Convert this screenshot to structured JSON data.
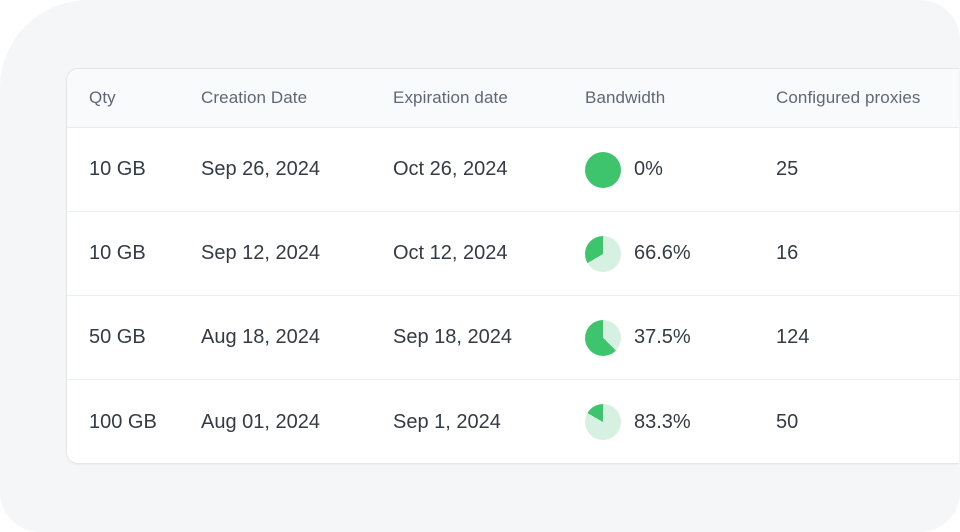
{
  "canvas": {
    "background_color": "#F5F6F8",
    "page_color": "#ffffff"
  },
  "table": {
    "columns": [
      {
        "key": "qty",
        "label": "Qty"
      },
      {
        "key": "creation",
        "label": "Creation Date"
      },
      {
        "key": "expiration",
        "label": "Expiration date"
      },
      {
        "key": "bandwidth",
        "label": "Bandwidth"
      },
      {
        "key": "proxies",
        "label": "Configured proxies"
      }
    ],
    "rows": [
      {
        "qty": "10 GB",
        "creation": "Sep 26, 2024",
        "expiration": "Oct 26, 2024",
        "bandwidth_label": "0%",
        "bandwidth_used_pct": 0,
        "proxies": "25"
      },
      {
        "qty": "10 GB",
        "creation": "Sep 12, 2024",
        "expiration": "Oct 12, 2024",
        "bandwidth_label": "66.6%",
        "bandwidth_used_pct": 66.6,
        "proxies": "16"
      },
      {
        "qty": "50 GB",
        "creation": "Aug 18, 2024",
        "expiration": "Sep 18, 2024",
        "bandwidth_label": "37.5%",
        "bandwidth_used_pct": 37.5,
        "proxies": "124"
      },
      {
        "qty": "100 GB",
        "creation": "Aug 01, 2024",
        "expiration": "Sep 1, 2024",
        "bandwidth_label": "83.3%",
        "bandwidth_used_pct": 83.3,
        "proxies": "50"
      }
    ]
  },
  "colors": {
    "pie_used": "#D6F1E1",
    "pie_remaining": "#3EC46D",
    "header_text": "#5D6877",
    "cell_text": "#343B46",
    "card_border": "#E4E6EA",
    "header_bg": "#F9FAFB",
    "row_divider": "#EDEFF2"
  }
}
